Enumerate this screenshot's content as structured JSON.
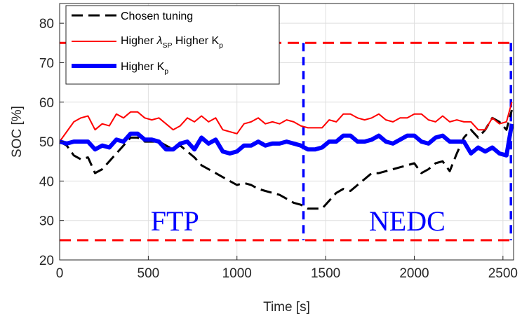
{
  "chart_data": {
    "type": "line",
    "xlabel": "Time [s]",
    "ylabel": "SOC [%]",
    "xlim": [
      0,
      2560
    ],
    "ylim": [
      20,
      85
    ],
    "xticks": [
      0,
      500,
      1000,
      1500,
      2000,
      2500
    ],
    "yticks": [
      20,
      30,
      40,
      50,
      60,
      70,
      80
    ],
    "grid": true,
    "legend_position": "top-left",
    "colors": {
      "black": "#000000",
      "red": "#ff0000",
      "blue": "#0000ff"
    },
    "series": [
      {
        "name": "Chosen tuning",
        "color": "#000000",
        "style": "dashed",
        "x": [
          0,
          40,
          80,
          120,
          160,
          200,
          240,
          280,
          320,
          360,
          400,
          440,
          480,
          520,
          560,
          600,
          640,
          680,
          720,
          760,
          800,
          840,
          880,
          920,
          960,
          1000,
          1040,
          1080,
          1120,
          1160,
          1200,
          1240,
          1280,
          1320,
          1360,
          1400,
          1440,
          1480,
          1520,
          1560,
          1600,
          1640,
          1680,
          1720,
          1760,
          1800,
          1840,
          1880,
          1920,
          1960,
          2000,
          2040,
          2080,
          2120,
          2160,
          2200,
          2240,
          2280,
          2320,
          2360,
          2400,
          2440,
          2480,
          2520,
          2550
        ],
        "y": [
          50,
          49,
          46.5,
          45.5,
          46,
          42,
          43,
          45,
          47,
          49,
          51,
          51,
          50,
          50,
          50,
          49,
          48,
          49,
          47.5,
          46,
          44,
          43,
          42,
          41,
          40,
          39,
          39.5,
          39,
          38,
          37.5,
          37,
          36.5,
          35.5,
          34.5,
          34,
          33,
          33,
          33,
          35,
          37,
          38,
          37.5,
          39,
          40.5,
          42,
          42,
          42.5,
          43,
          43.5,
          44,
          44.5,
          42,
          43,
          44.5,
          45,
          42.5,
          47,
          51,
          53,
          51,
          53,
          56,
          55,
          53,
          58
        ]
      },
      {
        "name": "Higher λSP Higher Kp",
        "color": "#ff0000",
        "style": "solid",
        "x": [
          0,
          40,
          80,
          120,
          160,
          200,
          240,
          280,
          320,
          360,
          400,
          440,
          480,
          520,
          560,
          600,
          640,
          680,
          720,
          760,
          800,
          840,
          880,
          920,
          960,
          1000,
          1040,
          1080,
          1120,
          1160,
          1200,
          1240,
          1280,
          1320,
          1360,
          1400,
          1440,
          1480,
          1520,
          1560,
          1600,
          1640,
          1680,
          1720,
          1760,
          1800,
          1840,
          1880,
          1920,
          1960,
          2000,
          2040,
          2080,
          2120,
          2160,
          2200,
          2240,
          2280,
          2320,
          2360,
          2400,
          2440,
          2480,
          2520,
          2550
        ],
        "y": [
          50,
          52.5,
          55,
          56,
          56.5,
          53,
          54.5,
          54,
          57,
          56,
          57.5,
          57.5,
          56,
          55.5,
          56,
          54.5,
          53,
          54,
          56,
          55,
          56.5,
          55,
          56,
          53,
          52.5,
          52,
          54.5,
          55,
          56,
          54.5,
          55,
          54.5,
          55.5,
          55,
          54,
          53.5,
          53.5,
          53.5,
          55.5,
          55,
          57,
          57,
          56,
          55.5,
          56,
          57,
          55.5,
          55,
          56,
          56,
          57,
          57,
          55.5,
          55,
          56.5,
          55,
          55.5,
          55,
          55,
          53,
          53,
          56,
          54.5,
          55,
          60
        ]
      },
      {
        "name": "Higher Kp",
        "color": "#0000ff",
        "style": "solid-thick",
        "x": [
          0,
          40,
          80,
          120,
          160,
          200,
          240,
          280,
          320,
          360,
          400,
          440,
          480,
          520,
          560,
          600,
          640,
          680,
          720,
          760,
          800,
          840,
          880,
          920,
          960,
          1000,
          1040,
          1080,
          1120,
          1160,
          1200,
          1240,
          1280,
          1320,
          1360,
          1400,
          1440,
          1480,
          1520,
          1560,
          1600,
          1640,
          1680,
          1720,
          1760,
          1800,
          1840,
          1880,
          1920,
          1960,
          2000,
          2040,
          2080,
          2120,
          2160,
          2200,
          2240,
          2280,
          2320,
          2360,
          2400,
          2440,
          2480,
          2520,
          2550
        ],
        "y": [
          50,
          49.5,
          50,
          50,
          50,
          48,
          49,
          48.5,
          50.5,
          50,
          52,
          52,
          50.5,
          50.5,
          50,
          48,
          48,
          49.5,
          50,
          48,
          51,
          49.5,
          50.5,
          47.5,
          47,
          47.5,
          49,
          49,
          50,
          49,
          49.5,
          49.5,
          50,
          49.5,
          49,
          48,
          48,
          48.5,
          50,
          50,
          51.5,
          51.5,
          50,
          50,
          50.5,
          51.5,
          50,
          49.5,
          50.5,
          51.5,
          51.5,
          50,
          49.5,
          51,
          51.5,
          50,
          50,
          50,
          47,
          48.5,
          47.5,
          48.5,
          47,
          46.5,
          54.5
        ]
      }
    ],
    "regions": [
      {
        "label": "FTP",
        "x0": 0,
        "x1": 1375,
        "y0": 25,
        "y1": 75
      },
      {
        "label": "NEDC",
        "x0": 1375,
        "x1": 2545,
        "y0": 25,
        "y1": 75
      }
    ],
    "legend": {
      "chosen": "Chosen tuning",
      "red_part1": "Higher ",
      "red_lambda": "λ",
      "red_lambda_sub": "SP",
      "red_part2": " Higher K",
      "red_k_sub": "p",
      "blue_part1": "Higher K",
      "blue_k_sub": "p"
    }
  }
}
